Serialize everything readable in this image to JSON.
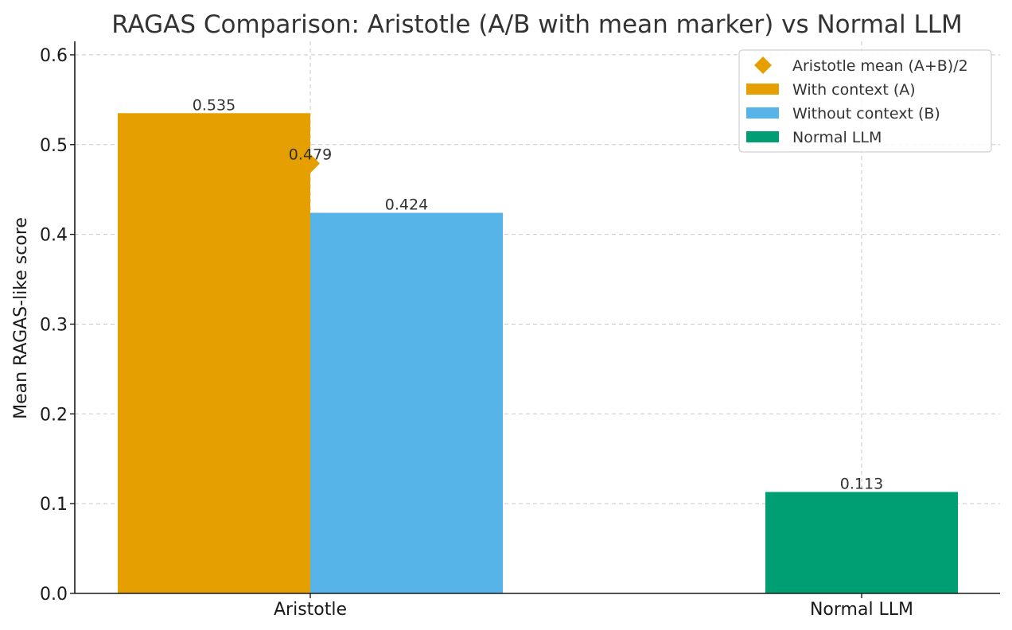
{
  "chart_data": {
    "type": "bar",
    "title": "RAGAS Comparison: Aristotle (A/B with mean marker) vs Normal LLM",
    "xlabel": "",
    "ylabel": "Mean RAGAS-like score",
    "ylim": [
      0,
      0.615
    ],
    "yticks": [
      "0.0",
      "0.1",
      "0.2",
      "0.3",
      "0.4",
      "0.5",
      "0.6"
    ],
    "yticks_values": [
      0,
      0.1,
      0.2,
      0.3,
      0.4,
      0.5,
      0.6
    ],
    "grid": true,
    "legend_position": "top-right",
    "categories": [
      "Aristotle",
      "Normal LLM"
    ],
    "bars": [
      {
        "series": "With context (A)",
        "category": "Aristotle",
        "value": 0.535,
        "label": "0.535",
        "color": "#E69F00",
        "slot": "left"
      },
      {
        "series": "Without context (B)",
        "category": "Aristotle",
        "value": 0.424,
        "label": "0.424",
        "color": "#56B4E9",
        "slot": "right"
      },
      {
        "series": "Normal LLM",
        "category": "Normal LLM",
        "value": 0.113,
        "label": "0.113",
        "color": "#009E73",
        "slot": "center"
      }
    ],
    "marker": {
      "series": "Aristotle mean (A+B)/2",
      "category": "Aristotle",
      "value": 0.479,
      "label": "0.479",
      "color": "#E69F00",
      "shape": "diamond"
    },
    "legend": [
      {
        "label": "Aristotle mean (A+B)/2",
        "color": "#E69F00",
        "shape": "diamond"
      },
      {
        "label": "With context (A)",
        "color": "#E69F00",
        "shape": "rect"
      },
      {
        "label": "Without context (B)",
        "color": "#56B4E9",
        "shape": "rect"
      },
      {
        "label": "Normal LLM",
        "color": "#009E73",
        "shape": "rect"
      }
    ]
  }
}
